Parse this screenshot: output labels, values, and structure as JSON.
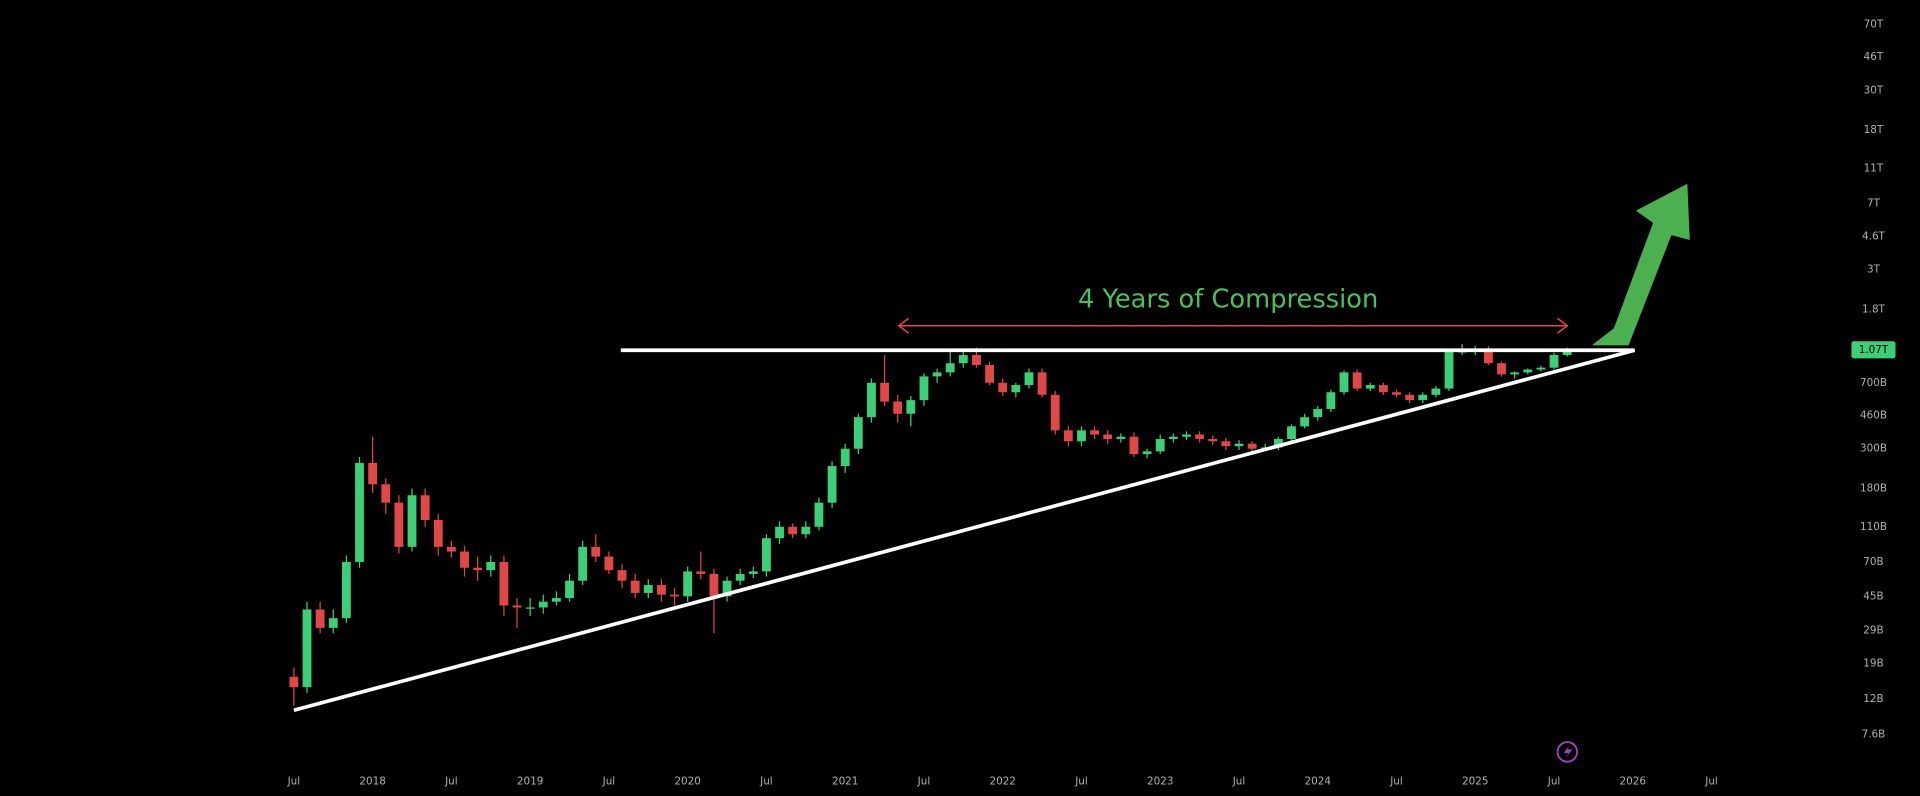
{
  "chart_data": {
    "type": "candlestick",
    "annotation": "4 Years of Compression",
    "log_scale": true,
    "up_color": "#3ccf78",
    "down_color": "#e04848",
    "categories": [
      "Jul",
      null,
      null,
      null,
      null,
      null,
      "2018",
      null,
      null,
      null,
      null,
      null,
      "Jul",
      null,
      null,
      null,
      null,
      null,
      "2019",
      null,
      null,
      null,
      null,
      null,
      "Jul",
      null,
      null,
      null,
      null,
      null,
      "2020",
      null,
      null,
      null,
      null,
      null,
      "Jul",
      null,
      null,
      null,
      null,
      null,
      "2021",
      null,
      null,
      null,
      null,
      null,
      "Jul",
      null,
      null,
      null,
      null,
      null,
      "2022",
      null,
      null,
      null,
      null,
      null,
      "Jul",
      null,
      null,
      null,
      null,
      null,
      "2023",
      null,
      null,
      null,
      null,
      null,
      "Jul",
      null,
      null,
      null,
      null,
      null,
      "2024",
      null,
      null,
      null,
      null,
      null,
      "Jul",
      null,
      null,
      null,
      null,
      null,
      "2025",
      null,
      null,
      null,
      null,
      null,
      "Jul",
      null,
      null,
      null,
      null,
      null,
      "2026",
      null,
      null,
      null,
      null,
      null,
      "Jul",
      null,
      null,
      null,
      null,
      null,
      null,
      null,
      null,
      null
    ],
    "open": [
      16,
      14,
      38,
      30,
      34,
      70,
      250,
      190,
      150,
      85,
      165,
      120,
      85,
      80,
      65,
      63,
      70,
      40,
      39,
      39,
      42,
      44,
      55,
      85,
      75,
      63,
      55,
      47,
      52,
      46,
      45,
      62,
      60,
      45,
      55,
      60,
      62,
      95,
      110,
      100,
      110,
      150,
      240,
      300,
      450,
      700,
      550,
      470,
      560,
      760,
      800,
      900,
      1000,
      880,
      700,
      620,
      680,
      800,
      600,
      380,
      330,
      380,
      360,
      340,
      350,
      280,
      290,
      340,
      350,
      360,
      340,
      330,
      310,
      320,
      300,
      305,
      340,
      400,
      450,
      500,
      620,
      800,
      650,
      680,
      620,
      600,
      560,
      600,
      650,
      1050,
      1050,
      1080,
      900,
      780,
      800,
      830,
      850,
      1000,
      null,
      null,
      null,
      null,
      null,
      null,
      null,
      null,
      null,
      null,
      null,
      null,
      null,
      null,
      null,
      null,
      null,
      null,
      null,
      null
    ],
    "high": [
      18,
      42,
      42,
      38,
      76,
      270,
      350,
      205,
      165,
      180,
      180,
      130,
      92,
      86,
      75,
      76,
      76,
      44,
      44,
      46,
      48,
      60,
      92,
      100,
      80,
      68,
      60,
      56,
      56,
      50,
      66,
      80,
      64,
      58,
      64,
      66,
      100,
      118,
      115,
      118,
      160,
      255,
      320,
      470,
      740,
      1000,
      600,
      590,
      790,
      840,
      1050,
      1050,
      1100,
      920,
      740,
      700,
      840,
      840,
      630,
      400,
      400,
      400,
      380,
      365,
      370,
      300,
      360,
      365,
      375,
      375,
      355,
      345,
      335,
      330,
      320,
      350,
      410,
      470,
      520,
      640,
      820,
      830,
      700,
      700,
      640,
      620,
      620,
      670,
      1080,
      1150,
      1120,
      1120,
      920,
      810,
      840,
      870,
      1030,
      1100,
      null,
      null,
      null,
      null,
      null,
      null,
      null,
      null,
      null,
      null,
      null,
      null,
      null,
      null,
      null,
      null,
      null,
      null,
      null,
      null
    ],
    "low": [
      11,
      13,
      28,
      28,
      32,
      65,
      170,
      130,
      78,
      80,
      110,
      76,
      74,
      58,
      55,
      58,
      35,
      30,
      35,
      36,
      40,
      42,
      52,
      70,
      60,
      50,
      44,
      44,
      42,
      40,
      42,
      56,
      28,
      42,
      52,
      57,
      58,
      88,
      95,
      95,
      105,
      140,
      220,
      280,
      420,
      520,
      420,
      400,
      520,
      700,
      760,
      850,
      850,
      680,
      590,
      580,
      650,
      580,
      360,
      310,
      310,
      340,
      320,
      325,
      270,
      265,
      280,
      325,
      335,
      325,
      315,
      295,
      295,
      285,
      290,
      295,
      330,
      390,
      430,
      480,
      600,
      630,
      630,
      600,
      580,
      540,
      540,
      580,
      630,
      1000,
      1000,
      880,
      760,
      740,
      780,
      810,
      830,
      980,
      null,
      null,
      null,
      null,
      null,
      null,
      null,
      null,
      null,
      null,
      null,
      null,
      null,
      null,
      null,
      null,
      null,
      null,
      null,
      null
    ],
    "close": [
      14,
      38,
      30,
      34,
      70,
      250,
      190,
      150,
      85,
      165,
      120,
      85,
      80,
      65,
      63,
      70,
      40,
      39,
      39,
      42,
      44,
      55,
      85,
      75,
      63,
      55,
      47,
      52,
      46,
      45,
      62,
      60,
      45,
      55,
      60,
      62,
      95,
      110,
      100,
      110,
      150,
      240,
      300,
      450,
      700,
      550,
      470,
      560,
      760,
      800,
      900,
      1000,
      880,
      700,
      620,
      680,
      800,
      600,
      380,
      330,
      380,
      360,
      340,
      350,
      280,
      290,
      340,
      350,
      360,
      340,
      330,
      310,
      320,
      300,
      305,
      340,
      400,
      450,
      500,
      620,
      800,
      650,
      680,
      620,
      600,
      560,
      600,
      650,
      1050,
      1050,
      1080,
      900,
      780,
      800,
      830,
      850,
      1000,
      1070,
      null,
      null,
      null,
      null,
      null,
      null,
      null,
      null,
      null,
      null,
      null,
      null,
      null,
      null,
      null,
      null,
      null,
      null,
      null,
      null
    ],
    "ylim": [
      5.2,
      88000
    ],
    "yticks": [
      {
        "value": 70000,
        "label": "70T"
      },
      {
        "value": 46000,
        "label": "46T"
      },
      {
        "value": 30000,
        "label": "30T"
      },
      {
        "value": 18000,
        "label": "18T"
      },
      {
        "value": 11000,
        "label": "11T"
      },
      {
        "value": 7000,
        "label": "7T"
      },
      {
        "value": 4600,
        "label": "4.6T"
      },
      {
        "value": 3000,
        "label": "3T"
      },
      {
        "value": 1800,
        "label": "1.8T"
      },
      {
        "value": 700,
        "label": "700B"
      },
      {
        "value": 460,
        "label": "460B"
      },
      {
        "value": 300,
        "label": "300B"
      },
      {
        "value": 180,
        "label": "180B"
      },
      {
        "value": 110,
        "label": "110B"
      },
      {
        "value": 70,
        "label": "70B"
      },
      {
        "value": 45,
        "label": "45B"
      },
      {
        "value": 29,
        "label": "29B"
      },
      {
        "value": 19,
        "label": "19B"
      },
      {
        "value": 12,
        "label": "12B"
      },
      {
        "value": 7.6,
        "label": "7.6B"
      }
    ],
    "price_label": {
      "value": 1070,
      "label": "1.07T"
    }
  }
}
